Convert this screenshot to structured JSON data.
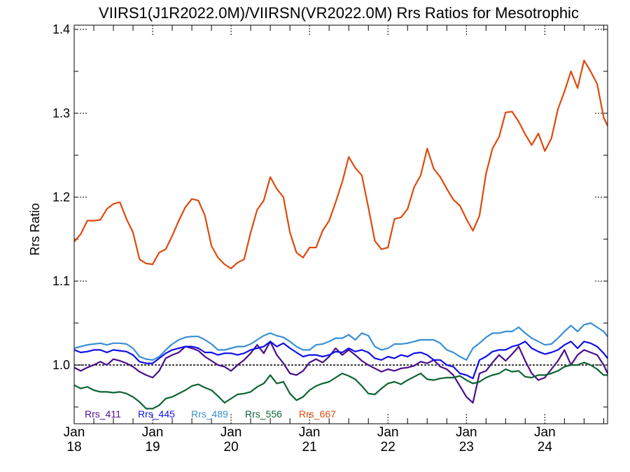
{
  "chart_data": {
    "type": "line",
    "title": "VIIRS1(J1R2022.0M)/VIIRSN(VR2022.0M)  Rrs Ratios for Mesotrophic",
    "xlabel": "",
    "ylabel": "Rrs Ratio",
    "ylim": [
      0.93,
      1.405
    ],
    "xlim": [
      2018.0,
      2024.8
    ],
    "yticks": [
      1.0,
      1.1,
      1.2,
      1.3,
      1.4
    ],
    "ytick_labels": [
      "1.0",
      "1.1",
      "1.2",
      "1.3",
      "1.4"
    ],
    "xticks": [
      {
        "value": 2018.0,
        "month": "Jan",
        "year": "18"
      },
      {
        "value": 2019.0,
        "month": "Jan",
        "year": "19"
      },
      {
        "value": 2020.0,
        "month": "Jan",
        "year": "20"
      },
      {
        "value": 2021.0,
        "month": "Jan",
        "year": "21"
      },
      {
        "value": 2022.0,
        "month": "Jan",
        "year": "22"
      },
      {
        "value": 2023.0,
        "month": "Jan",
        "year": "23"
      },
      {
        "value": 2024.0,
        "month": "Jan",
        "year": "24"
      }
    ],
    "reference_line": 1.0,
    "legend_position": "bottom-left",
    "x": [
      2018.0,
      2018.083,
      2018.167,
      2018.25,
      2018.333,
      2018.417,
      2018.5,
      2018.583,
      2018.667,
      2018.75,
      2018.833,
      2018.917,
      2019.0,
      2019.083,
      2019.167,
      2019.25,
      2019.333,
      2019.417,
      2019.5,
      2019.583,
      2019.667,
      2019.75,
      2019.833,
      2019.917,
      2020.0,
      2020.083,
      2020.167,
      2020.25,
      2020.333,
      2020.417,
      2020.5,
      2020.583,
      2020.667,
      2020.75,
      2020.833,
      2020.917,
      2021.0,
      2021.083,
      2021.167,
      2021.25,
      2021.333,
      2021.417,
      2021.5,
      2021.583,
      2021.667,
      2021.75,
      2021.833,
      2021.917,
      2022.0,
      2022.083,
      2022.167,
      2022.25,
      2022.333,
      2022.417,
      2022.5,
      2022.583,
      2022.667,
      2022.75,
      2022.833,
      2022.917,
      2023.0,
      2023.083,
      2023.167,
      2023.25,
      2023.333,
      2023.417,
      2023.5,
      2023.583,
      2023.667,
      2023.75,
      2023.833,
      2023.917,
      2024.0,
      2024.083,
      2024.167,
      2024.25,
      2024.333,
      2024.417,
      2024.5,
      2024.583,
      2024.667,
      2024.75,
      2024.8
    ],
    "series": [
      {
        "name": "Rrs_411",
        "color": "#4b0f8a",
        "values": [
          0.997,
          0.993,
          0.997,
          1.0,
          1.004,
          1.0,
          1.007,
          1.005,
          1.002,
          0.998,
          0.992,
          0.988,
          0.985,
          0.993,
          1.008,
          1.012,
          1.015,
          1.022,
          1.02,
          1.017,
          1.01,
          1.005,
          1.0,
          0.998,
          0.993,
          1.0,
          1.006,
          1.014,
          1.024,
          1.014,
          1.028,
          1.012,
          1.002,
          0.99,
          0.988,
          0.993,
          1.003,
          1.007,
          1.003,
          1.01,
          1.02,
          1.012,
          1.018,
          1.012,
          1.005,
          1.0,
          0.996,
          0.992,
          0.995,
          0.993,
          0.996,
          0.997,
          0.999,
          1.004,
          1.002,
          1.006,
          0.998,
          0.995,
          0.988,
          0.975,
          0.962,
          0.955,
          0.99,
          0.993,
          1.003,
          1.012,
          1.005,
          1.013,
          1.022,
          1.005,
          0.99,
          0.982,
          0.985,
          0.995,
          1.005,
          1.018,
          1.0,
          1.012,
          1.018,
          1.015,
          1.012,
          1.0,
          0.99
        ]
      },
      {
        "name": "Rrs_445",
        "color": "#1010e8",
        "values": [
          1.018,
          1.015,
          1.016,
          1.018,
          1.018,
          1.015,
          1.018,
          1.017,
          1.016,
          1.012,
          1.004,
          1.002,
          1.002,
          1.008,
          1.014,
          1.018,
          1.02,
          1.022,
          1.022,
          1.02,
          1.015,
          1.015,
          1.012,
          1.014,
          1.014,
          1.012,
          1.014,
          1.018,
          1.02,
          1.022,
          1.028,
          1.022,
          1.026,
          1.02,
          1.015,
          1.01,
          1.012,
          1.012,
          1.01,
          1.012,
          1.016,
          1.015,
          1.02,
          1.016,
          1.018,
          1.015,
          1.008,
          1.006,
          1.01,
          1.008,
          1.012,
          1.01,
          1.014,
          1.015,
          1.012,
          1.006,
          1.006,
          1.0,
          0.998,
          0.99,
          0.988,
          0.984,
          1.006,
          1.01,
          1.016,
          1.018,
          1.018,
          1.022,
          1.024,
          1.028,
          1.02,
          1.016,
          1.013,
          1.015,
          1.018,
          1.024,
          1.028,
          1.02,
          1.028,
          1.026,
          1.022,
          1.014,
          1.008
        ]
      },
      {
        "name": "Rrs_489",
        "color": "#3a8fd4",
        "values": [
          1.02,
          1.022,
          1.024,
          1.025,
          1.026,
          1.024,
          1.026,
          1.026,
          1.025,
          1.02,
          1.01,
          1.007,
          1.006,
          1.01,
          1.018,
          1.025,
          1.03,
          1.033,
          1.034,
          1.034,
          1.03,
          1.025,
          1.018,
          1.018,
          1.02,
          1.022,
          1.022,
          1.025,
          1.03,
          1.035,
          1.038,
          1.035,
          1.033,
          1.028,
          1.022,
          1.018,
          1.018,
          1.024,
          1.025,
          1.028,
          1.032,
          1.032,
          1.036,
          1.03,
          1.038,
          1.035,
          1.022,
          1.018,
          1.02,
          1.025,
          1.025,
          1.026,
          1.028,
          1.03,
          1.03,
          1.03,
          1.026,
          1.018,
          1.015,
          1.01,
          1.006,
          1.02,
          1.026,
          1.033,
          1.038,
          1.038,
          1.04,
          1.04,
          1.045,
          1.038,
          1.032,
          1.028,
          1.024,
          1.025,
          1.032,
          1.04,
          1.047,
          1.04,
          1.048,
          1.05,
          1.045,
          1.04,
          1.034
        ]
      },
      {
        "name": "Rrs_556",
        "color": "#0c6433",
        "values": [
          0.976,
          0.972,
          0.974,
          0.97,
          0.968,
          0.968,
          0.967,
          0.968,
          0.966,
          0.962,
          0.956,
          0.948,
          0.948,
          0.952,
          0.96,
          0.962,
          0.966,
          0.97,
          0.975,
          0.977,
          0.973,
          0.97,
          0.963,
          0.955,
          0.96,
          0.965,
          0.966,
          0.968,
          0.974,
          0.978,
          0.988,
          0.978,
          0.98,
          0.966,
          0.958,
          0.962,
          0.97,
          0.975,
          0.978,
          0.98,
          0.985,
          0.99,
          0.987,
          0.983,
          0.975,
          0.966,
          0.965,
          0.972,
          0.978,
          0.98,
          0.977,
          0.982,
          0.986,
          0.99,
          0.983,
          0.982,
          0.984,
          0.985,
          0.985,
          0.987,
          0.982,
          0.978,
          0.98,
          0.985,
          0.988,
          0.99,
          0.995,
          0.992,
          0.993,
          0.986,
          0.985,
          0.988,
          0.988,
          0.99,
          0.993,
          0.998,
          1.0,
          1.0,
          1.003,
          1.0,
          0.995,
          0.988,
          0.988
        ]
      },
      {
        "name": "Rrs_667",
        "color": "#de4a0e",
        "values": [
          1.147,
          1.156,
          1.172,
          1.172,
          1.173,
          1.186,
          1.192,
          1.194,
          1.174,
          1.158,
          1.126,
          1.121,
          1.12,
          1.134,
          1.138,
          1.154,
          1.172,
          1.188,
          1.198,
          1.196,
          1.178,
          1.142,
          1.128,
          1.12,
          1.115,
          1.122,
          1.126,
          1.158,
          1.185,
          1.196,
          1.224,
          1.21,
          1.2,
          1.158,
          1.134,
          1.128,
          1.14,
          1.14,
          1.16,
          1.172,
          1.194,
          1.218,
          1.248,
          1.235,
          1.226,
          1.188,
          1.148,
          1.138,
          1.14,
          1.174,
          1.176,
          1.186,
          1.212,
          1.226,
          1.258,
          1.234,
          1.224,
          1.21,
          1.197,
          1.19,
          1.174,
          1.16,
          1.178,
          1.228,
          1.258,
          1.272,
          1.301,
          1.302,
          1.29,
          1.275,
          1.262,
          1.276,
          1.255,
          1.27,
          1.305,
          1.326,
          1.35,
          1.33,
          1.363,
          1.35,
          1.335,
          1.295,
          1.285
        ]
      }
    ]
  },
  "legend": [
    {
      "label": "Rrs_411",
      "color": "#4b0f8a"
    },
    {
      "label": "Rrs_445",
      "color": "#1010e8"
    },
    {
      "label": "Rrs_489",
      "color": "#3a8fd4"
    },
    {
      "label": "Rrs_556",
      "color": "#0c6433"
    },
    {
      "label": "Rrs_667",
      "color": "#de4a0e"
    }
  ]
}
